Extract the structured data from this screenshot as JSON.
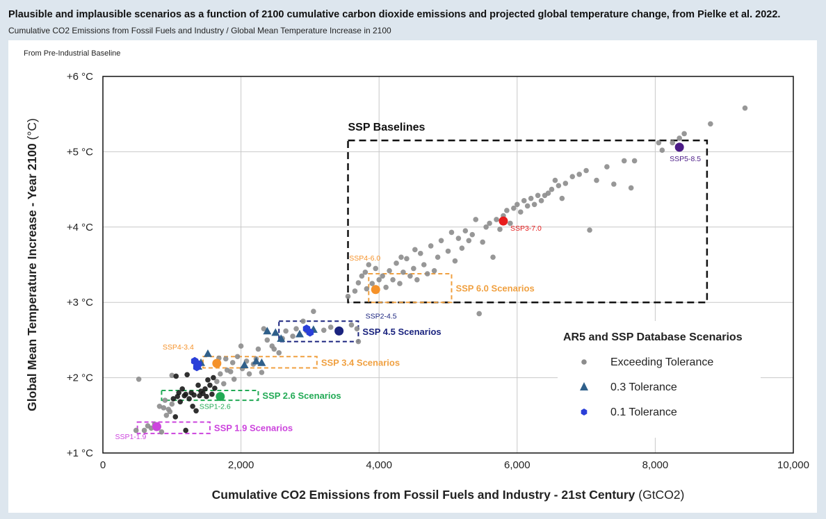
{
  "header": {
    "title": "Plausible and implausible scenarios as a function of 2100 cumulative carbon dioxide emissions and projected global temperature change, from Pielke et al. 2022.",
    "subtitle": "Cumulative CO2 Emissions from Fossil Fuels and Industry / Global Mean Temperature Increase in 2100"
  },
  "chart_data": {
    "type": "scatter",
    "note_label": "From Pre-Industrial Baseline",
    "xlabel": "Cumulative CO2 Emissions from Fossil Fuels and Industry - 21st Century",
    "xlabel_unit": "(GtCO2)",
    "ylabel": "Global Mean Temperature Increase - Year 2100",
    "ylabel_unit": "(°C)",
    "xlim": [
      0,
      10000
    ],
    "ylim": [
      1,
      6
    ],
    "x_ticks": [
      {
        "value": 0,
        "label": "0"
      },
      {
        "value": 2000,
        "label": "2,000"
      },
      {
        "value": 4000,
        "label": "4,000"
      },
      {
        "value": 6000,
        "label": "6,000"
      },
      {
        "value": 8000,
        "label": "8,000"
      },
      {
        "value": 10000,
        "label": "10,000"
      }
    ],
    "y_ticks": [
      {
        "value": 1,
        "label": "+1 °C"
      },
      {
        "value": 2,
        "label": "+2 °C"
      },
      {
        "value": 3,
        "label": "+3 °C"
      },
      {
        "value": 4,
        "label": "+4 °C"
      },
      {
        "value": 5,
        "label": "+5 °C"
      },
      {
        "value": 6,
        "label": "+6 °C"
      }
    ],
    "grid": true,
    "legend": {
      "position": "bottom-right",
      "title": "AR5 and SSP Database Scenarios",
      "entries": [
        {
          "label": "Exceeding Tolerance",
          "marker": "circle",
          "color": "#8c8c8c"
        },
        {
          "label": "0.3 Tolerance",
          "marker": "triangle",
          "color": "#2f5f8a"
        },
        {
          "label": "0.1 Tolerance",
          "marker": "hexagon",
          "color": "#2a3fd8"
        }
      ]
    },
    "regions": [
      {
        "label": "SSP Baselines",
        "x": [
          3550,
          8750
        ],
        "y": [
          3.0,
          5.15
        ],
        "color": "#111111"
      },
      {
        "label": "SSP 6.0 Scenarios",
        "x": [
          3850,
          5050
        ],
        "y": [
          3.0,
          3.38
        ],
        "color": "#f0a040"
      },
      {
        "label": "SSP 4.5 Scenarios",
        "x": [
          2550,
          3700
        ],
        "y": [
          2.48,
          2.75
        ],
        "color": "#1a237e"
      },
      {
        "label": "SSP 3.4 Scenarios",
        "x": [
          1450,
          3100
        ],
        "y": [
          2.13,
          2.28
        ],
        "color": "#f0a040"
      },
      {
        "label": "SSP 2.6 Scenarios",
        "x": [
          850,
          2250
        ],
        "y": [
          1.7,
          1.83
        ],
        "color": "#22aa55"
      },
      {
        "label": "SSP 1.9 Scenarios",
        "x": [
          500,
          1550
        ],
        "y": [
          1.26,
          1.41
        ],
        "color": "#cc44dd"
      }
    ],
    "ssp_markers": [
      {
        "label": "SSP5-8.5",
        "x": 8350,
        "y": 5.06,
        "color": "#4b1b86"
      },
      {
        "label": "SSP3-7.0",
        "x": 5800,
        "y": 4.08,
        "color": "#e81c1c"
      },
      {
        "label": "SSP4-6.0",
        "x": 3950,
        "y": 3.17,
        "color": "#f5922a"
      },
      {
        "label": "SSP2-4.5",
        "x": 3420,
        "y": 2.62,
        "color": "#1a237e"
      },
      {
        "label": "SSP4-3.4",
        "x": 1650,
        "y": 2.19,
        "color": "#f5922a"
      },
      {
        "label": "SSP1-2.6",
        "x": 1700,
        "y": 1.75,
        "color": "#22aa55"
      },
      {
        "label": "SSP1-1.9",
        "x": 780,
        "y": 1.35,
        "color": "#cc44dd"
      }
    ],
    "series": [
      {
        "name": "Exceeding Tolerance",
        "points": [
          [
            480,
            1.3
          ],
          [
            520,
            1.98
          ],
          [
            600,
            1.3
          ],
          [
            650,
            1.36
          ],
          [
            700,
            1.33
          ],
          [
            750,
            1.38
          ],
          [
            820,
            1.62
          ],
          [
            850,
            1.28
          ],
          [
            880,
            1.6
          ],
          [
            900,
            1.7
          ],
          [
            920,
            1.5
          ],
          [
            950,
            1.58
          ],
          [
            970,
            1.55
          ],
          [
            1000,
            1.65
          ],
          [
            1000,
            2.03
          ],
          [
            1020,
            1.72
          ],
          [
            1050,
            1.48
          ],
          [
            1060,
            2.02
          ],
          [
            1080,
            1.75
          ],
          [
            1100,
            1.8
          ],
          [
            1120,
            1.68
          ],
          [
            1150,
            1.85
          ],
          [
            1180,
            1.76
          ],
          [
            1200,
            1.78
          ],
          [
            1200,
            1.3
          ],
          [
            1220,
            2.04
          ],
          [
            1250,
            1.72
          ],
          [
            1280,
            1.8
          ],
          [
            1300,
            1.62
          ],
          [
            1320,
            1.77
          ],
          [
            1350,
            1.56
          ],
          [
            1380,
            1.9
          ],
          [
            1400,
            1.76
          ],
          [
            1420,
            1.82
          ],
          [
            1450,
            1.79
          ],
          [
            1480,
            1.85
          ],
          [
            1500,
            1.75
          ],
          [
            1520,
            1.97
          ],
          [
            1550,
            1.9
          ],
          [
            1580,
            1.78
          ],
          [
            1600,
            2.0
          ],
          [
            1620,
            1.86
          ],
          [
            1650,
            1.95
          ],
          [
            1680,
            2.26
          ],
          [
            1700,
            2.05
          ],
          [
            1750,
            1.92
          ],
          [
            1780,
            2.25
          ],
          [
            1800,
            2.1
          ],
          [
            1850,
            2.08
          ],
          [
            1880,
            2.2
          ],
          [
            1900,
            1.98
          ],
          [
            1950,
            2.28
          ],
          [
            2000,
            2.42
          ],
          [
            2020,
            2.12
          ],
          [
            2080,
            2.22
          ],
          [
            2120,
            2.05
          ],
          [
            2180,
            2.18
          ],
          [
            2220,
            2.25
          ],
          [
            2250,
            2.38
          ],
          [
            2300,
            2.07
          ],
          [
            2330,
            2.65
          ],
          [
            2380,
            2.5
          ],
          [
            2450,
            2.42
          ],
          [
            2480,
            2.38
          ],
          [
            2550,
            2.33
          ],
          [
            2600,
            2.52
          ],
          [
            2650,
            2.62
          ],
          [
            2750,
            2.55
          ],
          [
            2800,
            2.65
          ],
          [
            2900,
            2.75
          ],
          [
            2950,
            2.62
          ],
          [
            3050,
            2.88
          ],
          [
            3200,
            2.63
          ],
          [
            3300,
            2.67
          ],
          [
            3600,
            2.7
          ],
          [
            3680,
            2.65
          ],
          [
            3700,
            2.48
          ],
          [
            3550,
            3.08
          ],
          [
            3650,
            3.15
          ],
          [
            3700,
            3.26
          ],
          [
            3750,
            3.35
          ],
          [
            3800,
            3.4
          ],
          [
            3820,
            3.18
          ],
          [
            3850,
            3.5
          ],
          [
            3900,
            3.25
          ],
          [
            3950,
            3.45
          ],
          [
            4000,
            3.3
          ],
          [
            4050,
            3.35
          ],
          [
            4100,
            3.2
          ],
          [
            4150,
            3.42
          ],
          [
            4200,
            3.3
          ],
          [
            4250,
            3.52
          ],
          [
            4300,
            3.25
          ],
          [
            4320,
            3.6
          ],
          [
            4350,
            3.4
          ],
          [
            4400,
            3.58
          ],
          [
            4450,
            3.35
          ],
          [
            4500,
            3.45
          ],
          [
            4520,
            3.7
          ],
          [
            4550,
            3.3
          ],
          [
            4600,
            3.65
          ],
          [
            4650,
            3.5
          ],
          [
            4700,
            3.38
          ],
          [
            4750,
            3.75
          ],
          [
            4800,
            3.42
          ],
          [
            4850,
            3.6
          ],
          [
            4900,
            3.82
          ],
          [
            5000,
            3.68
          ],
          [
            5050,
            3.93
          ],
          [
            5100,
            3.55
          ],
          [
            5150,
            3.85
          ],
          [
            5200,
            3.72
          ],
          [
            5250,
            3.95
          ],
          [
            5300,
            3.82
          ],
          [
            5350,
            3.9
          ],
          [
            5400,
            4.1
          ],
          [
            5450,
            2.85
          ],
          [
            5500,
            3.8
          ],
          [
            5550,
            4.0
          ],
          [
            5600,
            4.05
          ],
          [
            5650,
            3.6
          ],
          [
            5700,
            4.1
          ],
          [
            5750,
            3.97
          ],
          [
            5800,
            4.15
          ],
          [
            5850,
            4.22
          ],
          [
            5900,
            4.05
          ],
          [
            5950,
            4.25
          ],
          [
            6000,
            4.3
          ],
          [
            6050,
            4.2
          ],
          [
            6100,
            4.35
          ],
          [
            6150,
            4.28
          ],
          [
            6200,
            4.38
          ],
          [
            6250,
            4.3
          ],
          [
            6300,
            4.42
          ],
          [
            6350,
            4.35
          ],
          [
            6400,
            4.42
          ],
          [
            6450,
            4.45
          ],
          [
            6500,
            4.5
          ],
          [
            6550,
            4.62
          ],
          [
            6600,
            4.55
          ],
          [
            6650,
            4.38
          ],
          [
            6700,
            4.58
          ],
          [
            6800,
            4.67
          ],
          [
            6900,
            4.7
          ],
          [
            7000,
            4.75
          ],
          [
            7050,
            3.96
          ],
          [
            7150,
            4.62
          ],
          [
            7300,
            4.8
          ],
          [
            7400,
            4.57
          ],
          [
            7550,
            4.88
          ],
          [
            7650,
            4.52
          ],
          [
            7700,
            4.88
          ],
          [
            8050,
            5.12
          ],
          [
            8100,
            5.02
          ],
          [
            8250,
            5.12
          ],
          [
            8350,
            5.18
          ],
          [
            8420,
            5.24
          ],
          [
            8800,
            5.37
          ],
          [
            9300,
            5.58
          ]
        ]
      },
      {
        "name": "0.3 Tolerance",
        "points": [
          [
            1380,
            2.15
          ],
          [
            1420,
            2.2
          ],
          [
            1520,
            2.32
          ],
          [
            2050,
            2.17
          ],
          [
            2220,
            2.22
          ],
          [
            2300,
            2.2
          ],
          [
            2380,
            2.62
          ],
          [
            2500,
            2.6
          ],
          [
            2580,
            2.52
          ],
          [
            2850,
            2.58
          ],
          [
            3050,
            2.64
          ]
        ]
      },
      {
        "name": "0.1 Tolerance",
        "points": [
          [
            1330,
            2.22
          ],
          [
            1360,
            2.14
          ],
          [
            1380,
            2.18
          ],
          [
            2950,
            2.65
          ],
          [
            3000,
            2.6
          ]
        ]
      }
    ]
  }
}
